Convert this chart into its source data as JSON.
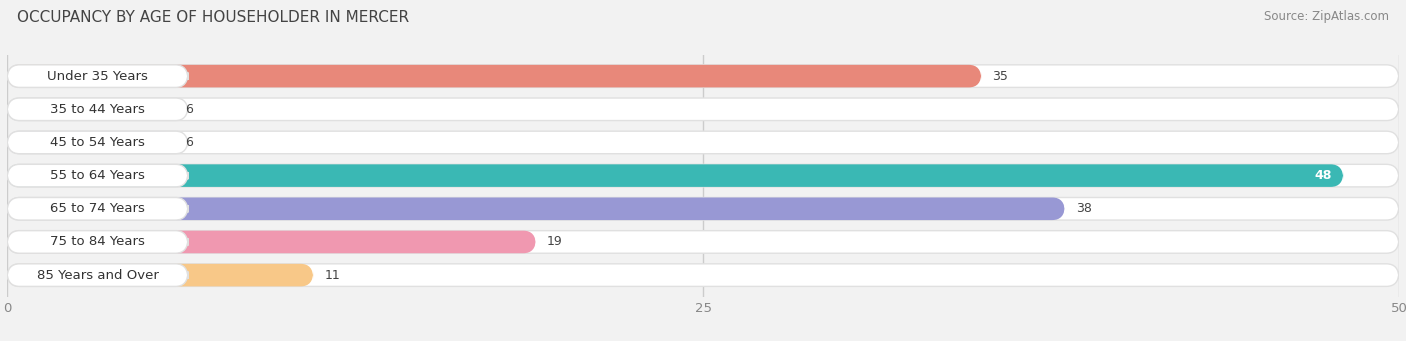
{
  "title": "OCCUPANCY BY AGE OF HOUSEHOLDER IN MERCER",
  "source": "Source: ZipAtlas.com",
  "categories": [
    "Under 35 Years",
    "35 to 44 Years",
    "45 to 54 Years",
    "55 to 64 Years",
    "65 to 74 Years",
    "75 to 84 Years",
    "85 Years and Over"
  ],
  "values": [
    35,
    6,
    6,
    48,
    38,
    19,
    11
  ],
  "bar_colors": [
    "#e8887a",
    "#aac4e8",
    "#c8aad8",
    "#3ab8b4",
    "#9898d4",
    "#f098b0",
    "#f8c888"
  ],
  "xlim": [
    0,
    50
  ],
  "xticks": [
    0,
    25,
    50
  ],
  "background_color": "#f2f2f2",
  "bar_bg_color": "#ffffff",
  "bar_bg_outline": "#e0e0e0",
  "title_fontsize": 11,
  "source_fontsize": 8.5,
  "label_fontsize": 9.5,
  "value_fontsize": 9,
  "value_inside_threshold": 40
}
